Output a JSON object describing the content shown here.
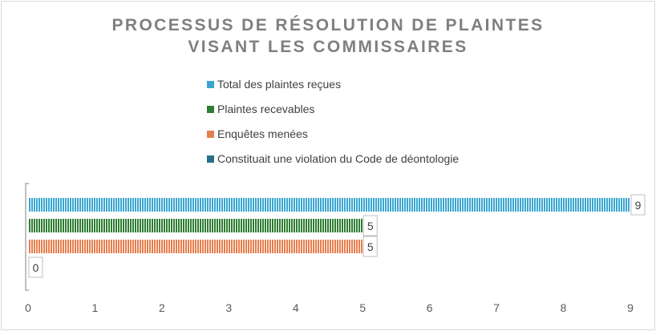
{
  "chart_data": {
    "type": "bar",
    "orientation": "horizontal",
    "title_lines": [
      "PROCESSUS DE RÉSOLUTION DE PLAINTES",
      "VISANT LES COMMISSAIRES"
    ],
    "categories": [
      ""
    ],
    "series": [
      {
        "name": "Total des plaintes reçues",
        "values": [
          9
        ],
        "color": "#3aa6d0",
        "label": "9"
      },
      {
        "name": "Plaintes recevables",
        "values": [
          5
        ],
        "color": "#2e7d32",
        "label": "5"
      },
      {
        "name": "Enquêtes menées",
        "values": [
          5
        ],
        "color": "#e67e4d",
        "label": "5"
      },
      {
        "name": "Constituait une violation du Code de déontologie",
        "values": [
          0
        ],
        "color": "#2a6f8a",
        "label": "0"
      }
    ],
    "xlim": [
      0,
      9
    ],
    "x_ticks": [
      "0",
      "1",
      "2",
      "3",
      "4",
      "5",
      "6",
      "7",
      "8",
      "9"
    ],
    "legend_position": "top",
    "grid": false,
    "bar_pattern": "vertical-stripes"
  }
}
